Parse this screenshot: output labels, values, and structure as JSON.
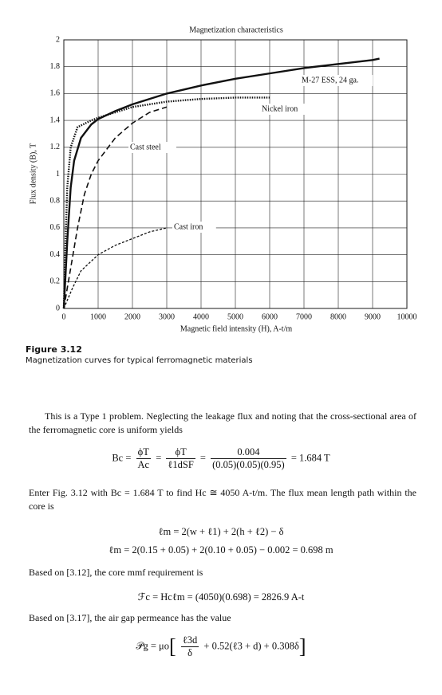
{
  "chart_data": {
    "type": "line",
    "title": "Magnetization characteristics",
    "x_label": "Magnetic field intensity (H), A-t/m",
    "y_label": "Flux density (B), T",
    "xlim": [
      0,
      10000
    ],
    "xticks": [
      0,
      1000,
      2000,
      3000,
      4000,
      5000,
      6000,
      7000,
      8000,
      9000,
      10000
    ],
    "ylim": [
      0,
      2
    ],
    "yticks": [
      0,
      0.2,
      0.4,
      0.6,
      0.8,
      1,
      1.2,
      1.4,
      1.6,
      1.8,
      2
    ],
    "grid": true,
    "series": [
      {
        "name": "M-27 ESS, 24 ga.",
        "color": "#111111",
        "style": "solid",
        "x": [
          0,
          100,
          200,
          300,
          500,
          800,
          1000,
          1500,
          2000,
          3000,
          4000,
          5000,
          6000,
          7000,
          8000,
          9000,
          9200
        ],
        "values": [
          0,
          0.5,
          0.9,
          1.1,
          1.27,
          1.37,
          1.41,
          1.47,
          1.52,
          1.6,
          1.66,
          1.71,
          1.75,
          1.79,
          1.82,
          1.85,
          1.86
        ]
      },
      {
        "name": "Nickel iron",
        "color": "#111111",
        "style": "dotted",
        "x": [
          0,
          50,
          100,
          200,
          400,
          800,
          1000,
          2000,
          3000,
          4000,
          5000,
          6000
        ],
        "values": [
          0,
          0.5,
          0.9,
          1.2,
          1.35,
          1.4,
          1.42,
          1.5,
          1.54,
          1.56,
          1.57,
          1.57
        ]
      },
      {
        "name": "Cast steel",
        "color": "#111111",
        "style": "dashed",
        "x": [
          0,
          200,
          400,
          600,
          800,
          1000,
          1500,
          2000,
          2500,
          3000
        ],
        "values": [
          0,
          0.3,
          0.6,
          0.85,
          1.0,
          1.1,
          1.27,
          1.38,
          1.46,
          1.5
        ]
      },
      {
        "name": "Cast iron",
        "color": "#111111",
        "style": "finedash",
        "x": [
          0,
          250,
          500,
          1000,
          1500,
          2000,
          2500,
          3000
        ],
        "values": [
          0,
          0.15,
          0.28,
          0.4,
          0.47,
          0.52,
          0.57,
          0.6
        ]
      }
    ]
  },
  "caption": {
    "label": "Figure 3.12",
    "text": "Magnetization curves for typical ferromagnetic materials"
  },
  "body": {
    "p1": "This is a Type 1 problem. Neglecting the leakage flux and noting that the cross-sectional area of the ferromagnetic core is uniform yields",
    "eq1": {
      "lhs": "Bc =",
      "f1_num": "ϕT",
      "f1_den": "Ac",
      "f2_num": "ϕT",
      "f2_den": "ℓ1dSF",
      "f3_num": "0.004",
      "f3_den": "(0.05)(0.05)(0.95)",
      "rhs": "= 1.684 T"
    },
    "p2": "Enter Fig. 3.12 with Bc = 1.684 T to find Hc ≅ 4050 A-t/m. The flux mean length path within the core is",
    "eq2": "ℓm = 2(w + ℓ1) + 2(h + ℓ2) − δ",
    "eq3": "ℓm = 2(0.15 + 0.05) + 2(0.10 + 0.05) − 0.002 = 0.698 m",
    "p3": "Based on [3.12], the core mmf requirement is",
    "eq4": "ℱc = Hcℓm = (4050)(0.698) = 2826.9 A-t",
    "p4": "Based on [3.17], the air gap permeance has the value",
    "eq5": {
      "lhs": "𝒫g = μo",
      "num": "ℓ3d",
      "den": "δ",
      "rest": "+ 0.52(ℓ3 + d) + 0.308δ"
    }
  }
}
